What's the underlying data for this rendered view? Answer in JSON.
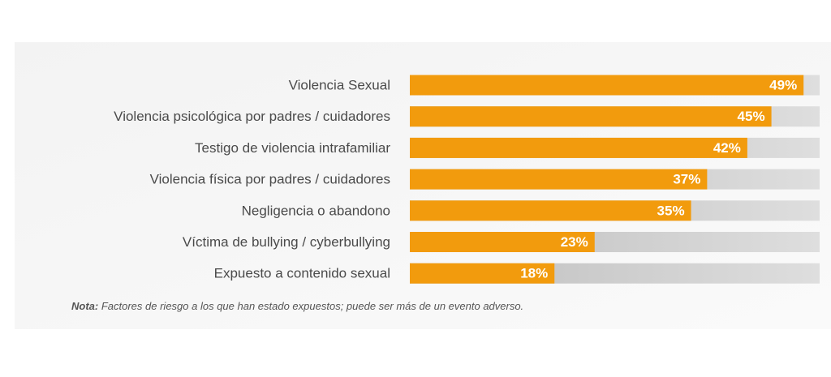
{
  "chart_data": {
    "type": "bar",
    "orientation": "horizontal",
    "categories": [
      "Violencia Sexual",
      "Violencia psicológica por padres / cuidadores",
      "Testigo de violencia intrafamiliar",
      "Violencia física por padres / cuidadores",
      "Negligencia o abandono",
      "Víctima de bullying / cyberbullying",
      "Expuesto a contenido sexual"
    ],
    "values": [
      49,
      45,
      42,
      37,
      35,
      23,
      18
    ],
    "value_labels": [
      "49%",
      "45%",
      "42%",
      "37%",
      "35%",
      "23%",
      "18%"
    ],
    "color": "#f29b0d",
    "xlim": [
      0,
      51
    ],
    "note_label": "Nota:",
    "note": "Factores de riesgo a los que han estado expuestos; puede ser más de un evento adverso."
  }
}
